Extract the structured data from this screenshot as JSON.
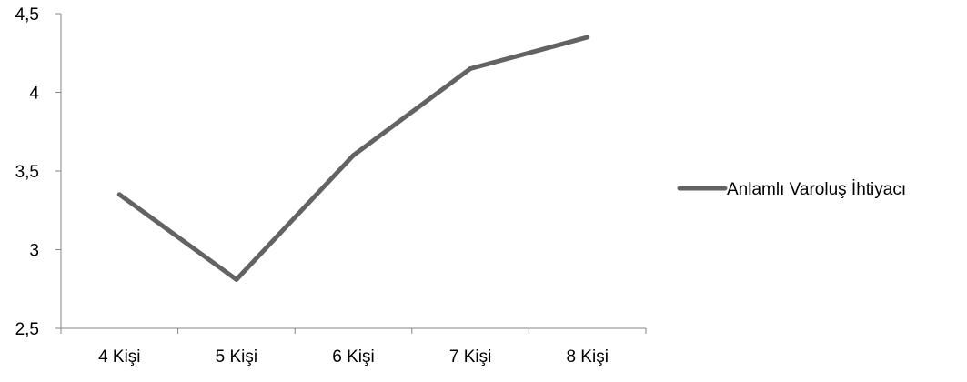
{
  "chart_data": {
    "type": "line",
    "categories": [
      "4 Kişi",
      "5 Kişi",
      "6 Kişi",
      "7 Kişi",
      "8 Kişi"
    ],
    "series": [
      {
        "name": "Anlamlı Varoluş İhtiyacı",
        "values": [
          3.35,
          2.81,
          3.6,
          4.15,
          4.35
        ],
        "color": "#636363"
      }
    ],
    "yticks": [
      "2,5",
      "3",
      "3,5",
      "4",
      "4,5"
    ],
    "ylim": [
      2.5,
      4.5
    ],
    "grid": false,
    "legend_position": "right",
    "axis_color": "#868686"
  }
}
